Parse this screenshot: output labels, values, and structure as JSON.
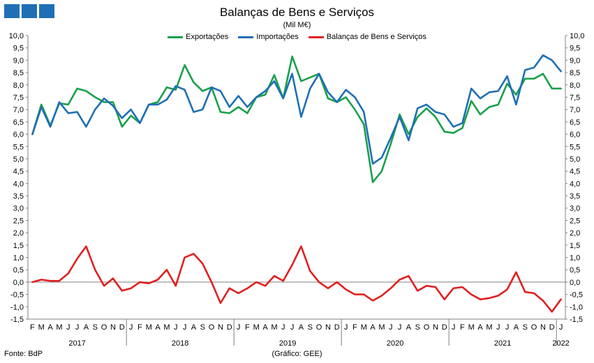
{
  "logo": {
    "icon": "three-blue-squares-logo"
  },
  "title": "Balanças de Bens e Serviços",
  "subtitle": "(Mil M€)",
  "footer": {
    "source": "Fonte: BdP",
    "credit": "(Gráfico: GEE)"
  },
  "colors": {
    "exportacoes": "#1aa04b",
    "importacoes": "#1f6fb5",
    "balanca": "#e02020"
  },
  "chart_data": {
    "type": "line",
    "title": "Balanças de Bens e Serviços",
    "subtitle": "(Mil M€)",
    "ylim": [
      -1.5,
      10.0
    ],
    "y_ticks": [
      "-1,5",
      "-1,0",
      "-0,5",
      "0,0",
      "0,5",
      "1,0",
      "1,5",
      "2,0",
      "2,5",
      "3,0",
      "3,5",
      "4,0",
      "4,5",
      "5,0",
      "5,5",
      "6,0",
      "6,5",
      "7,0",
      "7,5",
      "8,0",
      "8,5",
      "9,0",
      "9,5",
      "10,0"
    ],
    "y_ticks_right": [
      "-1,5",
      "-1,0",
      "-0,5",
      "0,0",
      "0,5",
      "1,0",
      "1,5",
      "2,0",
      "2,5",
      "3,0",
      "3,5",
      "4,0",
      "4,5",
      "5,0",
      "5,5",
      "6,0",
      "6,5",
      "7,0",
      "7,5",
      "8,0",
      "8,5",
      "9,0",
      "9,5",
      "10,0"
    ],
    "month_labels": [
      "F",
      "M",
      "A",
      "M",
      "J",
      "J",
      "A",
      "S",
      "O",
      "N",
      "D",
      "J",
      "F",
      "M",
      "A",
      "M",
      "J",
      "J",
      "A",
      "S",
      "O",
      "N",
      "D",
      "J",
      "F",
      "M",
      "A",
      "M",
      "J",
      "J",
      "A",
      "S",
      "O",
      "N",
      "D",
      "J",
      "F",
      "M",
      "A",
      "M",
      "J",
      "J",
      "A",
      "S",
      "O",
      "N",
      "D",
      "J",
      "F",
      "M",
      "A",
      "M",
      "J",
      "J",
      "A",
      "S",
      "O",
      "N",
      "D",
      "J"
    ],
    "years": [
      {
        "label": "2017",
        "start": 0,
        "end": 10
      },
      {
        "label": "2018",
        "start": 11,
        "end": 22
      },
      {
        "label": "2019",
        "start": 23,
        "end": 34
      },
      {
        "label": "2020",
        "start": 35,
        "end": 46
      },
      {
        "label": "2021",
        "start": 47,
        "end": 58
      },
      {
        "label": "2022",
        "start": 59,
        "end": 59
      }
    ],
    "grid": false,
    "legend_position": "top-center",
    "series": [
      {
        "name": "Exportações",
        "color": "#1aa04b",
        "values": [
          6.0,
          7.2,
          6.35,
          7.25,
          7.2,
          7.85,
          7.75,
          7.5,
          7.3,
          7.3,
          6.3,
          6.75,
          6.45,
          7.2,
          7.3,
          7.9,
          7.8,
          8.8,
          8.1,
          7.75,
          7.9,
          6.9,
          6.85,
          7.1,
          6.85,
          7.5,
          7.6,
          8.4,
          7.45,
          9.15,
          8.15,
          8.3,
          8.45,
          7.45,
          7.3,
          7.5,
          7.0,
          6.4,
          4.05,
          4.5,
          5.6,
          6.8,
          6.0,
          6.7,
          7.05,
          6.7,
          6.1,
          6.05,
          6.25,
          7.35,
          6.8,
          7.1,
          7.2,
          8.05,
          7.6,
          8.25,
          8.25,
          8.45,
          7.85,
          7.85
        ]
      },
      {
        "name": "Importações",
        "color": "#1f6fb5",
        "values": [
          6.0,
          7.1,
          6.3,
          7.3,
          6.85,
          6.9,
          6.3,
          7.0,
          7.45,
          7.15,
          6.65,
          7.0,
          6.45,
          7.2,
          7.2,
          7.4,
          7.95,
          7.8,
          6.9,
          7.0,
          7.9,
          7.75,
          7.1,
          7.55,
          7.1,
          7.5,
          7.75,
          8.15,
          7.45,
          8.45,
          6.7,
          7.85,
          8.45,
          7.7,
          7.3,
          7.8,
          7.5,
          6.9,
          4.8,
          5.05,
          5.85,
          6.7,
          5.75,
          7.05,
          7.2,
          6.9,
          6.8,
          6.3,
          6.45,
          7.85,
          7.45,
          7.7,
          7.75,
          8.35,
          7.2,
          8.6,
          8.7,
          9.2,
          9.0,
          8.55
        ]
      },
      {
        "name": "Balanças de Bens e Serviços",
        "color": "#e02020",
        "values": [
          0.0,
          0.1,
          0.05,
          0.05,
          0.35,
          0.95,
          1.45,
          0.5,
          -0.15,
          0.15,
          -0.35,
          -0.25,
          0.0,
          -0.05,
          0.1,
          0.5,
          -0.15,
          1.0,
          1.15,
          0.75,
          0.0,
          -0.85,
          -0.25,
          -0.45,
          -0.25,
          0.0,
          -0.15,
          0.25,
          0.05,
          0.7,
          1.45,
          0.45,
          0.0,
          -0.25,
          0.0,
          -0.3,
          -0.5,
          -0.5,
          -0.75,
          -0.55,
          -0.25,
          0.1,
          0.25,
          -0.35,
          -0.15,
          -0.2,
          -0.7,
          -0.25,
          -0.2,
          -0.5,
          -0.7,
          -0.65,
          -0.55,
          -0.3,
          0.4,
          -0.4,
          -0.45,
          -0.75,
          -1.2,
          -0.7
        ]
      }
    ]
  }
}
